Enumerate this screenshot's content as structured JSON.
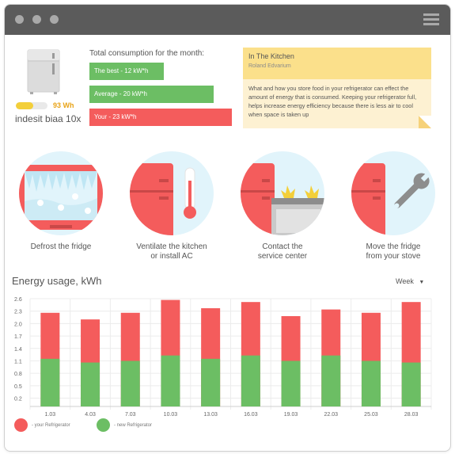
{
  "fridge": {
    "name": "indesit biaa 10x",
    "battery_text": "93 Wh",
    "battery_level": 0.55
  },
  "consumption": {
    "title": "Total consumption for the month:",
    "bars": [
      {
        "label": "The best - 12 kW*h",
        "color": "#6cbe64",
        "value": 12
      },
      {
        "label": "Average - 20 kW*h",
        "color": "#6cbe64",
        "value": 20
      },
      {
        "label": "Your - 23 kW*h",
        "color": "#f45c5c",
        "value": 23
      }
    ]
  },
  "article": {
    "title": "In The Kitchen",
    "author": "Roland Edvarium",
    "body": "What and how you store food in your refrigerator can effect the amount of energy that is consumed. Keeping your refrigerator full, helps increase energy efficiency because there is less air to cool when space is taken up"
  },
  "tips": [
    {
      "label_line1": "Defrost the fridge",
      "label_line2": ""
    },
    {
      "label_line1": "Ventilate the kitchen",
      "label_line2": "or install AC"
    },
    {
      "label_line1": "Contact the",
      "label_line2": "service center"
    },
    {
      "label_line1": "Move the fridge",
      "label_line2": "from your stove"
    }
  ],
  "chart_data": {
    "type": "bar",
    "title": "Energy usage, kWh",
    "period": "Week",
    "categories": [
      "1.03",
      "4.03",
      "7.03",
      "10.03",
      "13.03",
      "16.03",
      "19.03",
      "22.03",
      "25.03",
      "28.03"
    ],
    "yticks": [
      "0.2",
      "0.5",
      "0.8",
      "1.1",
      "1.4",
      "1.7",
      "2.0",
      "2.3",
      "2.6"
    ],
    "ylim": [
      0,
      2.6
    ],
    "series": [
      {
        "name": "- your Refrigerator",
        "color": "#f45c5c",
        "values": [
          2.26,
          2.1,
          2.26,
          2.57,
          2.37,
          2.52,
          2.18,
          2.34,
          2.26,
          2.52
        ]
      },
      {
        "name": "- new Refrigerator",
        "color": "#6cbe64",
        "values": [
          1.15,
          1.06,
          1.1,
          1.23,
          1.15,
          1.23,
          1.1,
          1.23,
          1.1,
          1.06
        ]
      }
    ],
    "stacked": false,
    "grid": true,
    "legend": "bottom-left"
  }
}
